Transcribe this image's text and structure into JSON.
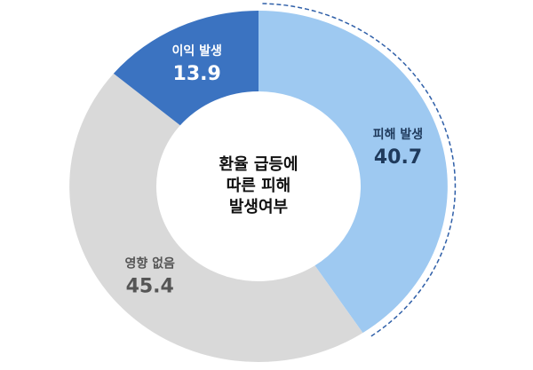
{
  "chart_data": {
    "type": "donut",
    "title": [
      "환율 급등에",
      "따른 피해",
      "발생여부"
    ],
    "categories": [
      "피해 발생",
      "영향 없음",
      "이익 발생"
    ],
    "values": [
      40.7,
      45.4,
      13.9
    ],
    "colors": [
      "#9ec9f1",
      "#d9d9d9",
      "#3b73c1"
    ],
    "label_colors": [
      "#1f3a5c",
      "#555555",
      "#ffffff"
    ]
  }
}
